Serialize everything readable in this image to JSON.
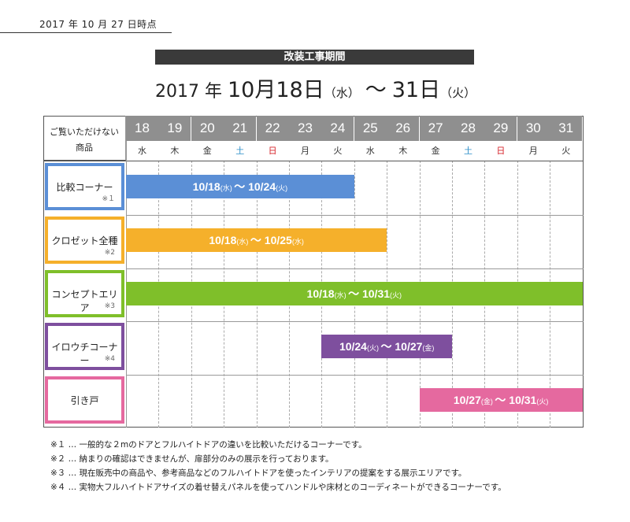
{
  "as_of": "2017 年 10 月 27 日時点",
  "title": "改装工事期間",
  "range": {
    "year": "2017 年",
    "start": "10月18日",
    "start_dow": "（水）",
    "tilde": "〜",
    "end": "31日",
    "end_dow": "（火）"
  },
  "header": {
    "label_line1": "ご覧いただけない",
    "label_line2": "商品",
    "days": [
      {
        "num": "18",
        "dow": "水",
        "type": "weekday"
      },
      {
        "num": "19",
        "dow": "木",
        "type": "weekday"
      },
      {
        "num": "20",
        "dow": "金",
        "type": "weekday"
      },
      {
        "num": "21",
        "dow": "土",
        "type": "sat"
      },
      {
        "num": "22",
        "dow": "日",
        "type": "sun"
      },
      {
        "num": "23",
        "dow": "月",
        "type": "weekday"
      },
      {
        "num": "24",
        "dow": "火",
        "type": "weekday"
      },
      {
        "num": "25",
        "dow": "水",
        "type": "weekday"
      },
      {
        "num": "26",
        "dow": "木",
        "type": "weekday"
      },
      {
        "num": "27",
        "dow": "金",
        "type": "weekday"
      },
      {
        "num": "28",
        "dow": "土",
        "type": "sat"
      },
      {
        "num": "29",
        "dow": "日",
        "type": "sun"
      },
      {
        "num": "30",
        "dow": "月",
        "type": "weekday"
      },
      {
        "num": "31",
        "dow": "火",
        "type": "weekday"
      }
    ]
  },
  "rows": [
    {
      "name": "比較コーナー",
      "mark": "※１",
      "color": "#5b8fd6",
      "start_day": 18,
      "end_day": 24,
      "bar": {
        "s": "10/18",
        "sd": "(水)",
        "t": "〜",
        "e": "10/24",
        "ed": "(火)"
      }
    },
    {
      "name": "クロゼット全種",
      "mark": "※2",
      "color": "#f5b02b",
      "start_day": 18,
      "end_day": 25,
      "bar": {
        "s": "10/18",
        "sd": "(水)",
        "t": "〜",
        "e": "10/25",
        "ed": "(水)"
      }
    },
    {
      "name": "コンセプトエリア",
      "mark": "※3",
      "color": "#7fbf2a",
      "start_day": 18,
      "end_day": 31,
      "bar": {
        "s": "10/18",
        "sd": "(水)",
        "t": "〜",
        "e": "10/31",
        "ed": "(火)"
      }
    },
    {
      "name": "イロウチコーナー",
      "mark": "※4",
      "color": "#7e4f9e",
      "start_day": 24,
      "end_day": 27,
      "bar": {
        "s": "10/24",
        "sd": "(火)",
        "t": "〜",
        "e": "10/27",
        "ed": "(金)"
      }
    },
    {
      "name": "引き戸",
      "mark": "",
      "color": "#e5699f",
      "start_day": 27,
      "end_day": 31,
      "bar": {
        "s": "10/27",
        "sd": "(金)",
        "t": "〜",
        "e": "10/31",
        "ed": "(火)"
      }
    }
  ],
  "notes": [
    "※１ … 一般的な２mのドアとフルハイトドアの違いを比較いただけるコーナーです。",
    "※２ … 納まりの確認はできませんが、扉部分のみの展示を行っております。",
    "※３ … 現在販売中の商品や、参考商品などのフルハイトドアを使ったインテリアの提案をする展示エリアです。",
    "※４ … 実物大フルハイトドアサイズの着せ替えパネルを使ってハンドルや床材とのコーディネートができるコーナーです。"
  ]
}
